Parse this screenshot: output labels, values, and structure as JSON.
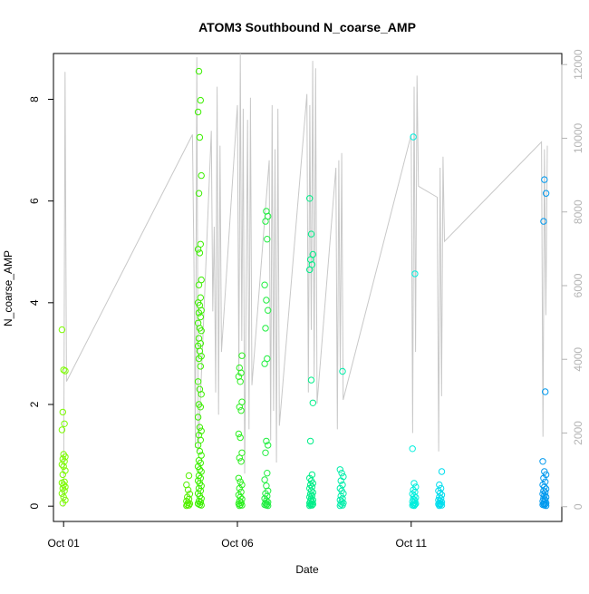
{
  "chart_data": {
    "type": "scatter",
    "title": "ATOM3 Southbound N_coarse_AMP",
    "xlabel": "Date",
    "ylabel": "N_coarse_AMP",
    "ylim": [
      -0.3,
      8.9
    ],
    "y2lim": [
      -400,
      12300
    ],
    "xlim": [
      "2016-09-30T17:00",
      "2016-10-15T08:00"
    ],
    "x_ticks": [
      {
        "x": "2016-10-01T00:00",
        "label": "Oct 01"
      },
      {
        "x": "2016-10-06T00:00",
        "label": "Oct 06"
      },
      {
        "x": "2016-10-11T00:00",
        "label": "Oct 11"
      }
    ],
    "y_ticks": [
      0,
      2,
      4,
      6,
      8
    ],
    "y2_ticks": [
      0,
      2000,
      4000,
      6000,
      8000,
      10000,
      12000
    ],
    "grid": false,
    "legend": "none",
    "point_style": "open circle",
    "line_color": "#c8c8c8",
    "secondary_line_points": [
      [
        "2016-10-01T00:00",
        0
      ],
      [
        "2016-10-01T01:00",
        11800
      ],
      [
        "2016-10-01T02:00",
        3400
      ],
      [
        "2016-10-04T17:00",
        10100
      ],
      [
        "2016-10-04T18:00",
        6700
      ],
      [
        "2016-10-04T19:00",
        1600
      ],
      [
        "2016-10-04T20:00",
        12200
      ],
      [
        "2016-10-04T21:00",
        1500
      ],
      [
        "2016-10-05T06:00",
        10200
      ],
      [
        "2016-10-05T07:00",
        5300
      ],
      [
        "2016-10-05T08:00",
        7600
      ],
      [
        "2016-10-05T09:00",
        3100
      ],
      [
        "2016-10-05T10:00",
        11400
      ],
      [
        "2016-10-05T11:00",
        2500
      ],
      [
        "2016-10-05T12:00",
        9800
      ],
      [
        "2016-10-05T13:00",
        4200
      ],
      [
        "2016-10-06T00:00",
        10900
      ],
      [
        "2016-10-06T01:00",
        3600
      ],
      [
        "2016-10-06T02:00",
        12300
      ],
      [
        "2016-10-06T03:00",
        4500
      ],
      [
        "2016-10-06T04:00",
        10800
      ],
      [
        "2016-10-06T05:00",
        900
      ],
      [
        "2016-10-06T07:00",
        10500
      ],
      [
        "2016-10-06T08:00",
        2100
      ],
      [
        "2016-10-06T09:00",
        11100
      ],
      [
        "2016-10-06T10:00",
        3300
      ],
      [
        "2016-10-06T22:00",
        9400
      ],
      [
        "2016-10-06T23:00",
        1800
      ],
      [
        "2016-10-07T00:00",
        10900
      ],
      [
        "2016-10-07T01:00",
        2600
      ],
      [
        "2016-10-07T02:00",
        9700
      ],
      [
        "2016-10-07T03:00",
        1200
      ],
      [
        "2016-10-07T04:00",
        10800
      ],
      [
        "2016-10-07T05:00",
        2200
      ],
      [
        "2016-10-08T00:00",
        11200
      ],
      [
        "2016-10-08T01:00",
        3100
      ],
      [
        "2016-10-08T02:00",
        10900
      ],
      [
        "2016-10-08T03:00",
        4800
      ],
      [
        "2016-10-08T04:00",
        12100
      ],
      [
        "2016-10-08T05:00",
        3500
      ],
      [
        "2016-10-08T06:00",
        11900
      ],
      [
        "2016-10-08T07:00",
        2800
      ],
      [
        "2016-10-08T20:00",
        9200
      ],
      [
        "2016-10-08T21:00",
        2100
      ],
      [
        "2016-10-08T22:00",
        9400
      ],
      [
        "2016-10-08T23:00",
        3700
      ],
      [
        "2016-10-09T00:00",
        9600
      ],
      [
        "2016-10-09T01:00",
        2900
      ],
      [
        "2016-10-11T00:00",
        10100
      ],
      [
        "2016-10-11T01:00",
        2000
      ],
      [
        "2016-10-11T02:00",
        11400
      ],
      [
        "2016-10-11T03:00",
        4200
      ],
      [
        "2016-10-11T04:00",
        11700
      ],
      [
        "2016-10-11T05:00",
        8700
      ],
      [
        "2016-10-11T18:00",
        8400
      ],
      [
        "2016-10-11T19:00",
        1500
      ],
      [
        "2016-10-11T20:00",
        9200
      ],
      [
        "2016-10-11T21:00",
        3000
      ],
      [
        "2016-10-11T22:00",
        9500
      ],
      [
        "2016-10-11T23:00",
        7200
      ],
      [
        "2016-10-14T18:00",
        9900
      ],
      [
        "2016-10-14T19:00",
        1900
      ],
      [
        "2016-10-14T20:00",
        9700
      ],
      [
        "2016-10-14T21:00",
        5200
      ],
      [
        "2016-10-14T22:00",
        9800
      ]
    ],
    "point_groups": [
      {
        "x": "2016-10-01T00:00",
        "color": "#7cfc00",
        "values": [
          3.47,
          2.68,
          2.66,
          1.85,
          1.62,
          1.5,
          1.02,
          0.97,
          0.93,
          0.88,
          0.82,
          0.78,
          0.7,
          0.62,
          0.48,
          0.46,
          0.42,
          0.38,
          0.35,
          0.3,
          0.25,
          0.18,
          0.12,
          0.06
        ]
      },
      {
        "x": "2016-10-04T14:00",
        "color": "#55f000",
        "values": [
          0.6,
          0.42,
          0.32,
          0.24,
          0.18,
          0.14,
          0.1,
          0.07,
          0.05,
          0.03,
          0.02,
          0.01
        ]
      },
      {
        "x": "2016-10-04T22:00",
        "color": "#3cef00",
        "values": [
          8.55,
          7.98,
          7.75,
          7.25,
          6.5,
          6.15,
          5.15,
          5.05,
          4.98,
          4.45,
          4.35,
          4.1,
          4.0,
          3.95,
          3.85,
          3.8,
          3.72,
          3.6,
          3.5,
          3.45,
          3.3,
          3.2,
          3.15,
          3.05,
          2.95,
          2.9,
          2.75,
          2.45,
          2.3,
          2.2,
          2.0,
          1.95,
          1.75,
          1.55,
          1.48,
          1.4,
          1.3,
          1.2,
          1.08,
          1.0,
          0.9,
          0.85,
          0.78,
          0.72,
          0.68,
          0.6,
          0.55,
          0.5,
          0.45,
          0.4,
          0.35,
          0.3,
          0.25,
          0.2,
          0.15,
          0.1,
          0.08,
          0.05,
          0.03,
          0.02
        ]
      },
      {
        "x": "2016-10-06T02:00",
        "color": "#2cef20",
        "values": [
          2.96,
          2.72,
          2.62,
          2.55,
          2.45,
          2.05,
          1.95,
          1.88,
          1.42,
          1.35,
          1.05,
          0.95,
          0.88,
          0.55,
          0.48,
          0.42,
          0.35,
          0.28,
          0.22,
          0.18,
          0.14,
          0.1,
          0.07,
          0.05,
          0.03,
          0.02,
          0.01
        ]
      },
      {
        "x": "2016-10-06T20:00",
        "color": "#20ee40",
        "values": [
          5.8,
          5.7,
          5.6,
          5.25,
          4.35,
          4.05,
          3.85,
          3.5,
          2.9,
          2.8,
          1.28,
          1.2,
          1.05,
          0.65,
          0.52,
          0.4,
          0.3,
          0.25,
          0.2,
          0.15,
          0.11,
          0.08,
          0.06,
          0.04,
          0.03,
          0.02,
          0.01
        ]
      },
      {
        "x": "2016-10-08T03:00",
        "color": "#00ee88",
        "values": [
          6.05,
          5.35,
          4.95,
          4.85,
          4.75,
          4.65,
          2.48,
          2.03,
          1.28,
          0.62,
          0.55,
          0.5,
          0.45,
          0.42,
          0.38,
          0.35,
          0.3,
          0.27,
          0.24,
          0.21,
          0.18,
          0.15,
          0.12,
          0.1,
          0.08,
          0.06,
          0.05,
          0.04,
          0.03,
          0.02,
          0.01
        ]
      },
      {
        "x": "2016-10-09T00:00",
        "color": "#00eeaa",
        "values": [
          2.65,
          0.72,
          0.65,
          0.58,
          0.5,
          0.42,
          0.35,
          0.3,
          0.25,
          0.2,
          0.15,
          0.12,
          0.09,
          0.06,
          0.04,
          0.02,
          0.01
        ]
      },
      {
        "x": "2016-10-11T02:00",
        "color": "#00eedd",
        "values": [
          7.26,
          4.57,
          1.13,
          0.45,
          0.38,
          0.32,
          0.28,
          0.24,
          0.2,
          0.17,
          0.14,
          0.11,
          0.09,
          0.07,
          0.05,
          0.04,
          0.03,
          0.02,
          0.01
        ]
      },
      {
        "x": "2016-10-11T20:00",
        "color": "#00ddee",
        "values": [
          0.68,
          0.42,
          0.35,
          0.3,
          0.26,
          0.22,
          0.18,
          0.15,
          0.12,
          0.1,
          0.08,
          0.06,
          0.05,
          0.04,
          0.03,
          0.02,
          0.01
        ]
      },
      {
        "x": "2016-10-14T20:00",
        "color": "#0099ee",
        "values": [
          6.42,
          6.15,
          5.6,
          2.25,
          0.88,
          0.68,
          0.62,
          0.55,
          0.48,
          0.42,
          0.38,
          0.34,
          0.3,
          0.27,
          0.24,
          0.21,
          0.18,
          0.15,
          0.12,
          0.1,
          0.08,
          0.06,
          0.05,
          0.04,
          0.03,
          0.02,
          0.01
        ]
      }
    ]
  }
}
